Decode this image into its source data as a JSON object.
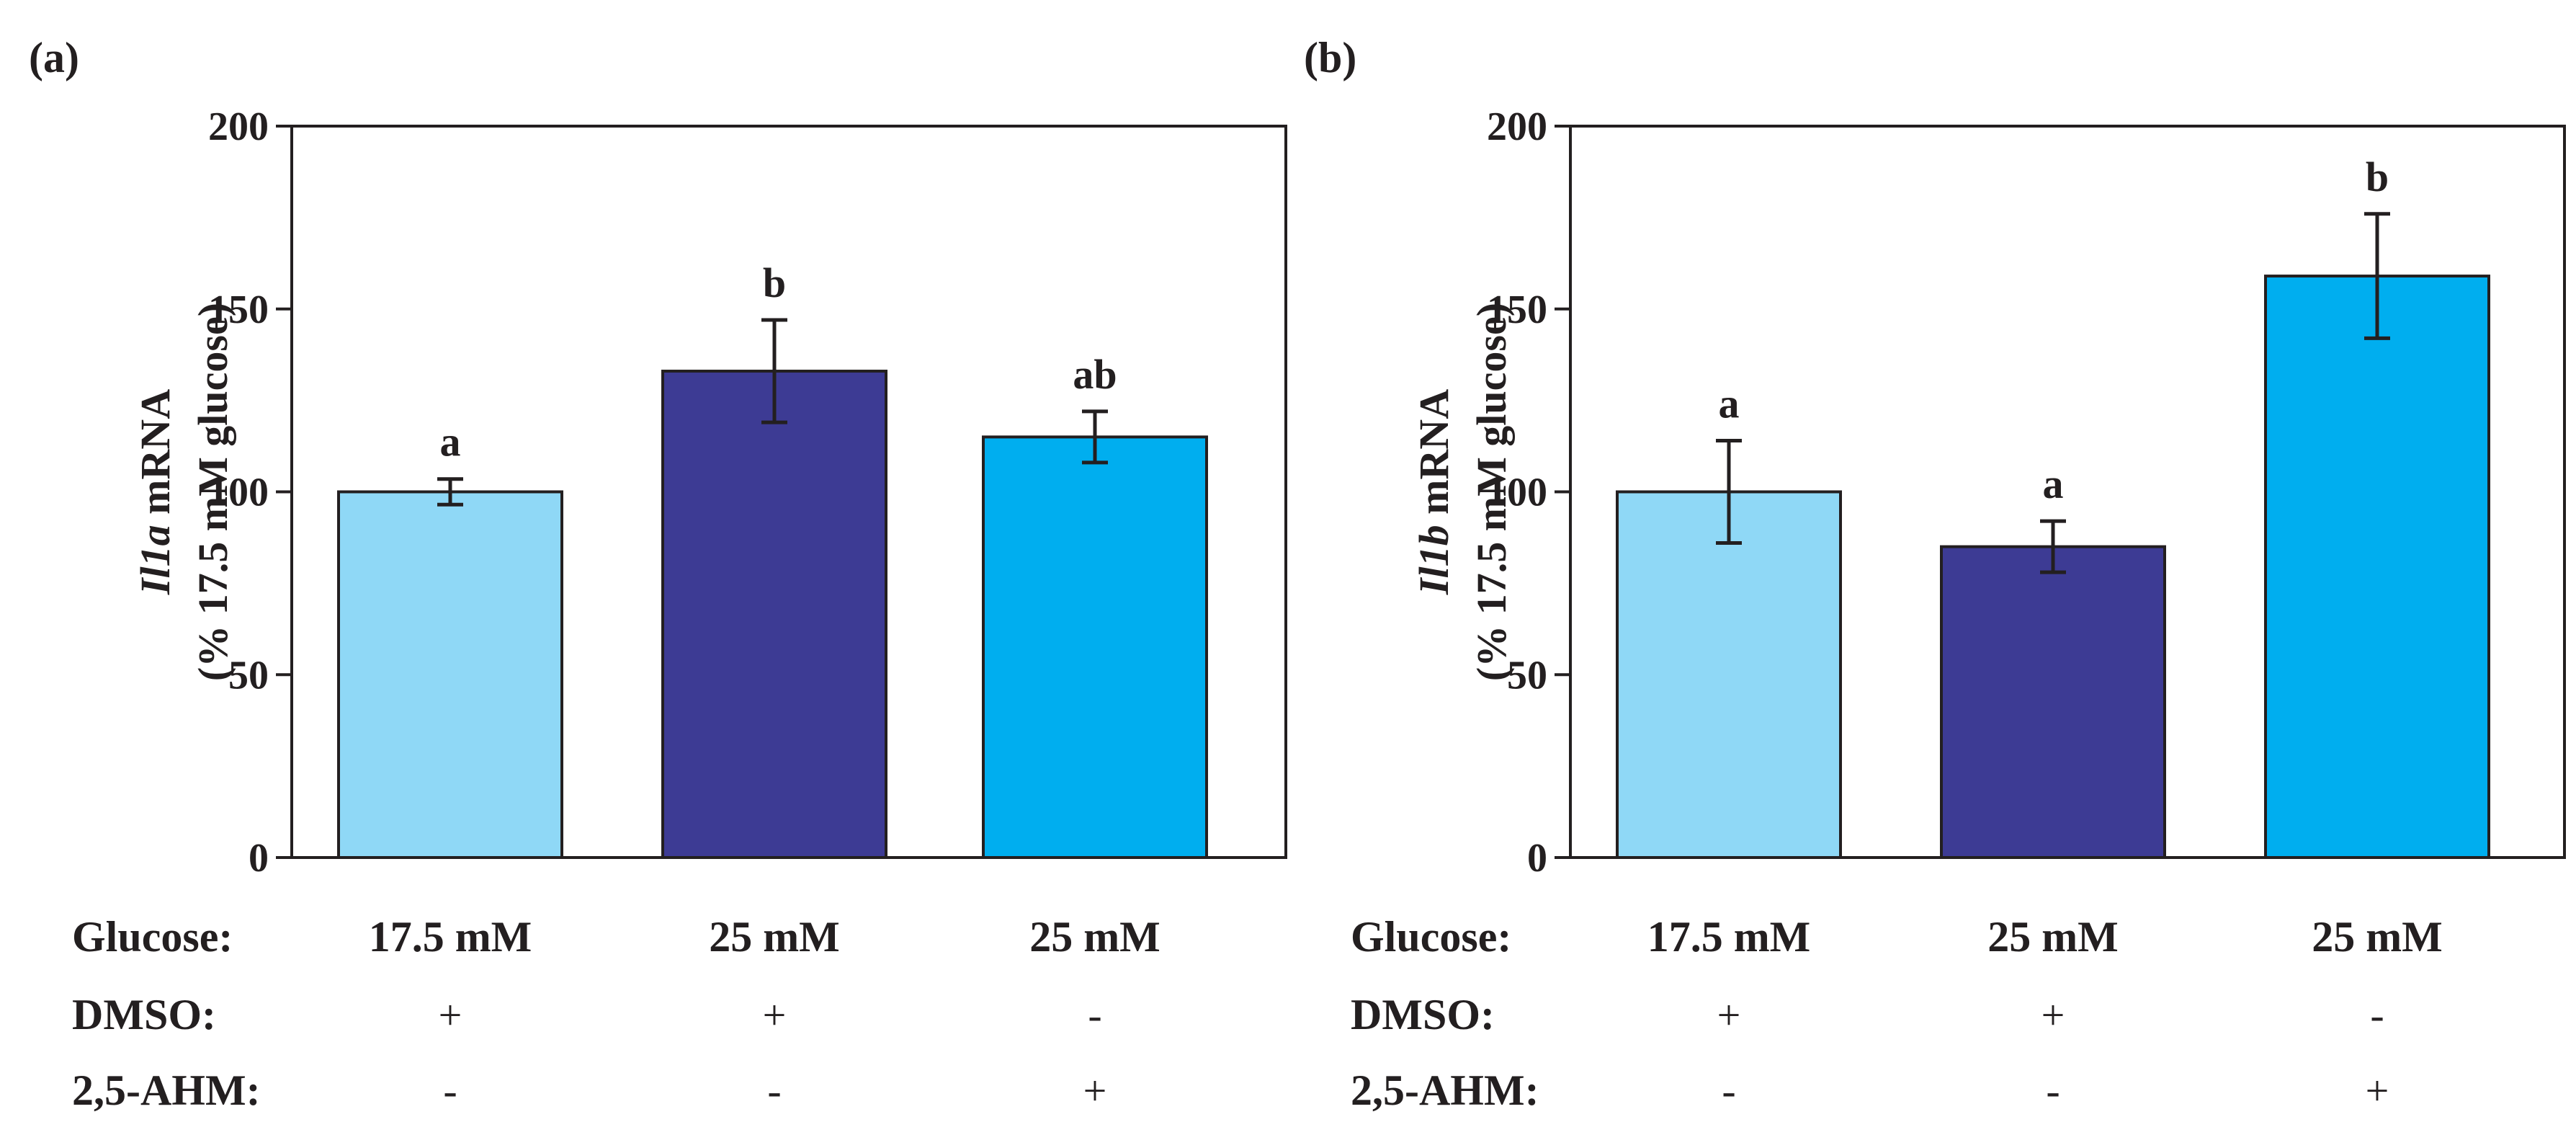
{
  "colors": {
    "bar_light": "#8fd8f6",
    "bar_dark": "#3d3b94",
    "bar_medium": "#00aeef",
    "ink": "#231f20"
  },
  "row_labels": [
    "Glucose:",
    "DMSO:",
    "2,5-AHM:"
  ],
  "chart_data": [
    {
      "type": "bar",
      "panel": "(a)",
      "ylabel_gene": "Il1a",
      "ylabel_rest": " mRNA",
      "ylabel_line2": "(% 17.5 mM glucose)",
      "ylim": [
        0,
        200
      ],
      "yticks": [
        "0",
        "50",
        "100",
        "150",
        "200"
      ],
      "categories": [
        {
          "glucose": "17.5 mM",
          "dmso": "+",
          "ahm": "-"
        },
        {
          "glucose": "25 mM",
          "dmso": "+",
          "ahm": "-"
        },
        {
          "glucose": "25 mM",
          "dmso": "-",
          "ahm": "+"
        }
      ],
      "values": [
        100,
        133,
        115
      ],
      "errors": [
        3.5,
        14,
        7
      ],
      "letters": [
        "a",
        "b",
        "ab"
      ],
      "bar_colors": [
        "#8fd8f6",
        "#3d3b94",
        "#00aeef"
      ]
    },
    {
      "type": "bar",
      "panel": "(b)",
      "ylabel_gene": "Il1b",
      "ylabel_rest": " mRNA",
      "ylabel_line2": "(% 17.5 mM glucose)",
      "ylim": [
        0,
        200
      ],
      "yticks": [
        "0",
        "50",
        "100",
        "150",
        "200"
      ],
      "categories": [
        {
          "glucose": "17.5 mM",
          "dmso": "+",
          "ahm": "-"
        },
        {
          "glucose": "25 mM",
          "dmso": "+",
          "ahm": "-"
        },
        {
          "glucose": "25 mM",
          "dmso": "-",
          "ahm": "+"
        }
      ],
      "values": [
        100,
        85,
        159
      ],
      "errors": [
        14,
        7,
        17
      ],
      "letters": [
        "a",
        "a",
        "b"
      ],
      "bar_colors": [
        "#8fd8f6",
        "#3d3b94",
        "#00aeef"
      ]
    }
  ]
}
